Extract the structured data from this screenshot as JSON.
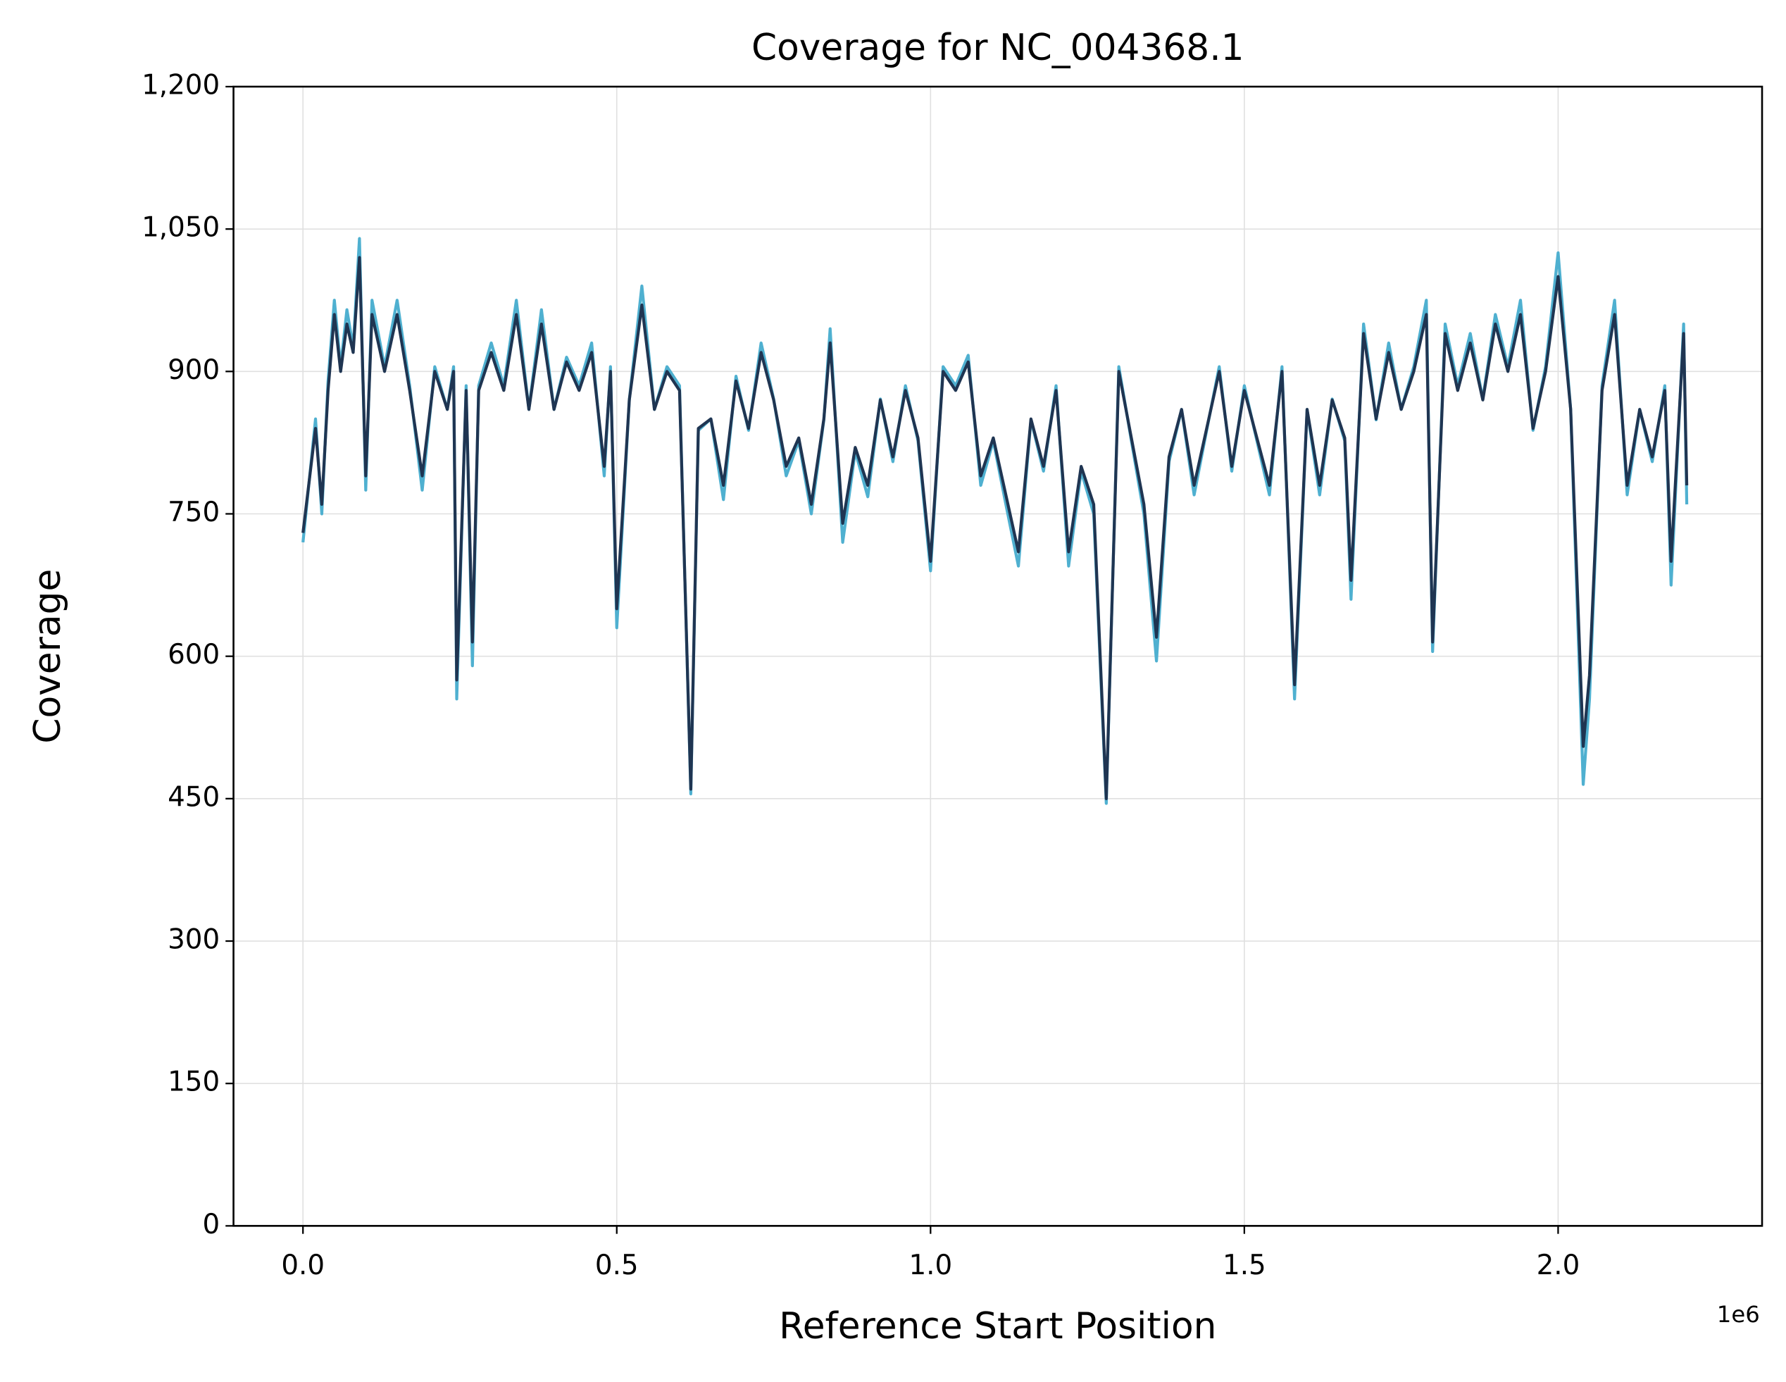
{
  "chart_data": {
    "type": "line",
    "title": "Coverage for NC_004368.1",
    "xlabel": "Reference Start Position",
    "ylabel": "Coverage",
    "x_offset_label": "1e6",
    "x": [
      0,
      20000,
      30000,
      40000,
      50000,
      60000,
      70000,
      80000,
      90000,
      100000,
      110000,
      130000,
      150000,
      170000,
      190000,
      210000,
      230000,
      240000,
      245000,
      260000,
      270000,
      280000,
      300000,
      320000,
      340000,
      360000,
      380000,
      400000,
      420000,
      440000,
      460000,
      480000,
      490000,
      500000,
      520000,
      540000,
      560000,
      580000,
      600000,
      618000,
      630000,
      650000,
      670000,
      690000,
      710000,
      730000,
      750000,
      770000,
      790000,
      810000,
      830000,
      840000,
      860000,
      880000,
      900000,
      920000,
      940000,
      960000,
      980000,
      1000000,
      1020000,
      1040000,
      1060000,
      1080000,
      1100000,
      1120000,
      1140000,
      1160000,
      1180000,
      1200000,
      1220000,
      1240000,
      1260000,
      1280000,
      1300000,
      1320000,
      1340000,
      1360000,
      1380000,
      1400000,
      1420000,
      1440000,
      1460000,
      1480000,
      1500000,
      1520000,
      1540000,
      1560000,
      1580000,
      1600000,
      1620000,
      1640000,
      1660000,
      1670000,
      1690000,
      1710000,
      1730000,
      1750000,
      1770000,
      1790000,
      1800000,
      1820000,
      1840000,
      1860000,
      1880000,
      1900000,
      1920000,
      1940000,
      1960000,
      1980000,
      2000000,
      2020000,
      2040000,
      2050000,
      2070000,
      2090000,
      2110000,
      2130000,
      2150000,
      2170000,
      2180000,
      2200000,
      2205000
    ],
    "series": [
      {
        "color": "#4fb0d0",
        "values": [
          720,
          850,
          750,
          890,
          975,
          905,
          965,
          925,
          1040,
          775,
          975,
          905,
          975,
          885,
          775,
          905,
          860,
          905,
          555,
          885,
          590,
          885,
          930,
          885,
          975,
          860,
          965,
          860,
          915,
          885,
          930,
          790,
          905,
          630,
          870,
          990,
          860,
          905,
          885,
          455,
          838,
          850,
          765,
          895,
          838,
          930,
          871,
          790,
          827,
          750,
          849,
          945,
          720,
          816,
          768,
          871,
          805,
          885,
          827,
          690,
          905,
          885,
          917,
          780,
          827,
          760,
          695,
          849,
          795,
          885,
          695,
          795,
          750,
          445,
          905,
          827,
          750,
          595,
          805,
          860,
          770,
          838,
          905,
          795,
          885,
          827,
          770,
          905,
          555,
          860,
          770,
          871,
          827,
          660,
          950,
          849,
          930,
          860,
          905,
          975,
          605,
          950,
          885,
          940,
          871,
          960,
          905,
          975,
          838,
          905,
          1025,
          860,
          465,
          555,
          885,
          975,
          770,
          860,
          805,
          885,
          675,
          950,
          760
        ]
      },
      {
        "color": "#1f3552",
        "values": [
          730,
          840,
          760,
          880,
          960,
          900,
          950,
          920,
          1020,
          790,
          960,
          900,
          960,
          880,
          790,
          900,
          860,
          900,
          575,
          880,
          615,
          880,
          920,
          880,
          960,
          860,
          950,
          860,
          910,
          880,
          920,
          800,
          900,
          650,
          870,
          970,
          860,
          900,
          880,
          460,
          840,
          850,
          780,
          890,
          840,
          920,
          870,
          800,
          830,
          760,
          850,
          930,
          740,
          820,
          780,
          870,
          810,
          880,
          830,
          700,
          900,
          880,
          910,
          790,
          830,
          770,
          710,
          850,
          800,
          880,
          710,
          800,
          760,
          450,
          900,
          830,
          760,
          620,
          810,
          860,
          780,
          840,
          900,
          800,
          880,
          830,
          780,
          900,
          570,
          860,
          780,
          870,
          830,
          680,
          940,
          850,
          920,
          860,
          900,
          960,
          615,
          940,
          880,
          930,
          870,
          950,
          900,
          960,
          840,
          900,
          1000,
          860,
          505,
          580,
          880,
          960,
          780,
          860,
          810,
          880,
          700,
          940,
          780
        ]
      }
    ],
    "xlim": [
      -110700,
      2325000
    ],
    "xticks": [
      {
        "value": 0,
        "label": "0.0"
      },
      {
        "value": 500000,
        "label": "0.5"
      },
      {
        "value": 1000000,
        "label": "1.0"
      },
      {
        "value": 1500000,
        "label": "1.5"
      },
      {
        "value": 2000000,
        "label": "2.0"
      }
    ],
    "ylim": [
      0,
      1200
    ],
    "yticks": [
      0,
      150,
      300,
      450,
      600,
      750,
      900,
      {
        "value": 1050,
        "label": "1,050"
      },
      {
        "value": 1200,
        "label": "1,200"
      }
    ],
    "grid": true
  }
}
